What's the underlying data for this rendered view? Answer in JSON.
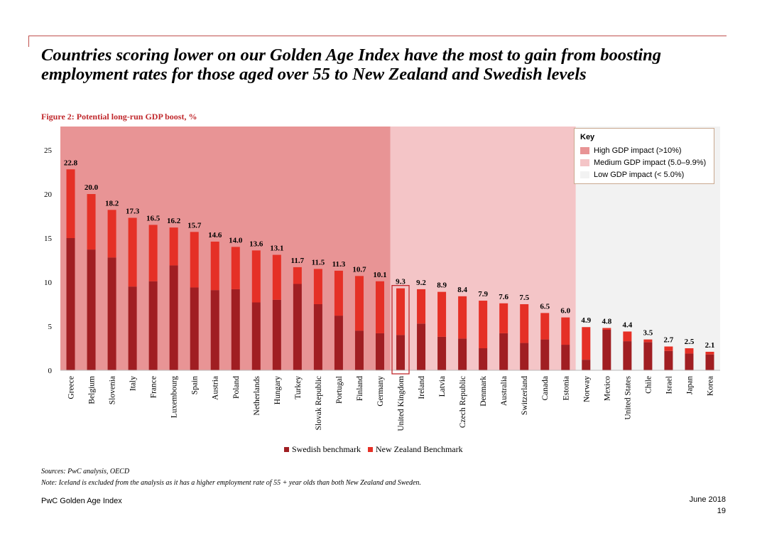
{
  "title": "Countries scoring lower on our Golden Age Index have the most to gain from boosting employment rates for those aged over 55 to New Zealand and Swedish levels",
  "subtitle": "Figure 2: Potential long-run GDP boost, %",
  "colors": {
    "swedish": "#a01e22",
    "nz": "#e53026",
    "high_zone": "#e89495",
    "medium_zone": "#f4c5c7",
    "low_zone": "#f2f2f2",
    "highlight": "#c0282c"
  },
  "key": {
    "title": "Key",
    "items": [
      {
        "label": "High GDP impact (>10%)",
        "color": "#e89495"
      },
      {
        "label": "Medium GDP impact (5.0–9.9%)",
        "color": "#f4c5c7"
      },
      {
        "label": "Low GDP impact (< 5.0%)",
        "color": "#f2f2f2"
      }
    ]
  },
  "legend": {
    "swedish": "Swedish benchmark",
    "nz": "New Zealand Benchmark"
  },
  "chart_data": {
    "type": "bar",
    "stacked": true,
    "highlighted_category": "United Kingdom",
    "categories": [
      "Greece",
      "Belgium",
      "Slovenia",
      "Italy",
      "France",
      "Luxembourg",
      "Spain",
      "Austria",
      "Poland",
      "Netherlands",
      "Hungary",
      "Turkey",
      "Slovak Republic",
      "Portugal",
      "Finland",
      "Germany",
      "United Kingdom",
      "Ireland",
      "Latvia",
      "Czech Republic",
      "Denmark",
      "Australia",
      "Switzerland",
      "Canada",
      "Estonia",
      "Norway",
      "Mexico",
      "United States",
      "Chile",
      "Israel",
      "Japan",
      "Korea"
    ],
    "labels": [
      "22.8",
      "20.0",
      "18.2",
      "17.3",
      "16.5",
      "16.2",
      "15.7",
      "14.6",
      "14.0",
      "13.6",
      "13.1",
      "11.7",
      "11.5",
      "11.3",
      "10.7",
      "10.1",
      "9.3",
      "9.2",
      "8.9",
      "8.4",
      "7.9",
      "7.6",
      "7.5",
      "6.5",
      "6.0",
      "4.9",
      "4.8",
      "4.4",
      "3.5",
      "2.7",
      "2.5",
      "2.1"
    ],
    "series": [
      {
        "name": "Swedish benchmark",
        "values": [
          15.0,
          13.7,
          12.8,
          9.5,
          10.1,
          11.9,
          9.4,
          9.1,
          9.2,
          7.7,
          8.0,
          9.8,
          7.5,
          6.2,
          4.5,
          4.2,
          4.0,
          5.3,
          3.8,
          3.6,
          2.5,
          4.2,
          3.1,
          3.5,
          2.9,
          1.2,
          4.6,
          3.3,
          3.2,
          2.2,
          1.9,
          1.8
        ]
      },
      {
        "name": "New Zealand Benchmark",
        "values": [
          7.8,
          6.3,
          5.4,
          7.8,
          6.4,
          4.3,
          6.3,
          5.5,
          4.8,
          5.9,
          5.1,
          1.9,
          4.0,
          5.1,
          6.2,
          5.9,
          5.3,
          3.9,
          5.1,
          4.8,
          5.4,
          3.4,
          4.4,
          3.0,
          3.1,
          3.7,
          0.2,
          1.1,
          0.3,
          0.5,
          0.6,
          0.3
        ]
      }
    ],
    "zones": [
      {
        "name": "High GDP impact (>10%)",
        "from": "Greece",
        "to": "Germany"
      },
      {
        "name": "Medium GDP impact (5.0–9.9%)",
        "from": "United Kingdom",
        "to": "Estonia"
      },
      {
        "name": "Low GDP impact (< 5.0%)",
        "from": "Norway",
        "to": "Korea"
      }
    ],
    "ylim": [
      0,
      25
    ],
    "yticks": [
      "0",
      "5",
      "10",
      "15",
      "20",
      "25"
    ]
  },
  "notes": {
    "sources": "Sources: PwC analysis, OECD",
    "note": "Note: Iceland is excluded from the analysis as it has a higher employment rate of 55 + year olds than both New Zealand and Sweden."
  },
  "footer": {
    "left": "PwC Golden Age Index",
    "date": "June 2018",
    "page": "19"
  }
}
